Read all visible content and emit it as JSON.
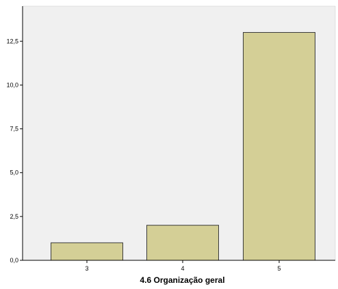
{
  "chart_data": {
    "type": "bar",
    "title": "",
    "xlabel": "4.6 Organização geral",
    "ylabel": "",
    "categories": [
      "3",
      "4",
      "5"
    ],
    "values": [
      1,
      2,
      13
    ],
    "ylim": [
      0,
      14.5
    ],
    "yticks": [
      0,
      2.5,
      5,
      7.5,
      10,
      12.5
    ],
    "ytick_labels": [
      "0,0",
      "2,5",
      "5,0",
      "7,5",
      "10,0",
      "12,5"
    ],
    "grid": false,
    "legend": "none",
    "colors": {
      "bar_fill": "#d4cf96",
      "bar_stroke": "#3a3a3a",
      "plot_background": "#f0f0f0",
      "axis": "#000000"
    }
  }
}
